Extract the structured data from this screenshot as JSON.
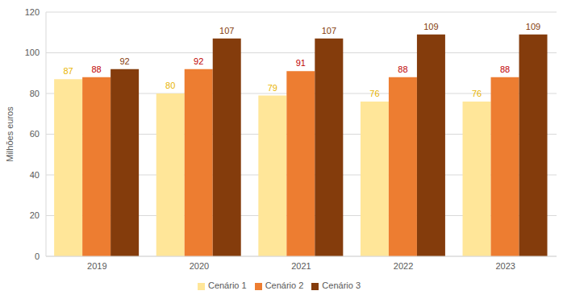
{
  "chart_data": {
    "type": "bar",
    "categories": [
      "2019",
      "2020",
      "2021",
      "2022",
      "2023"
    ],
    "series": [
      {
        "name": "Cenário 1",
        "color": "#FFE699",
        "values": [
          87,
          80,
          79,
          76,
          76
        ]
      },
      {
        "name": "Cenário 2",
        "color": "#ED7D31",
        "values": [
          88,
          92,
          91,
          88,
          88
        ]
      },
      {
        "name": "Cenário 3",
        "color": "#843C0C",
        "values": [
          92,
          107,
          107,
          109,
          109
        ]
      }
    ],
    "y_label": "Milhões euros",
    "ylim": [
      0,
      120
    ],
    "yticks": [
      0,
      20,
      40,
      60,
      80,
      100,
      120
    ],
    "grid": true,
    "legend": "bottom",
    "data_labels": true
  }
}
